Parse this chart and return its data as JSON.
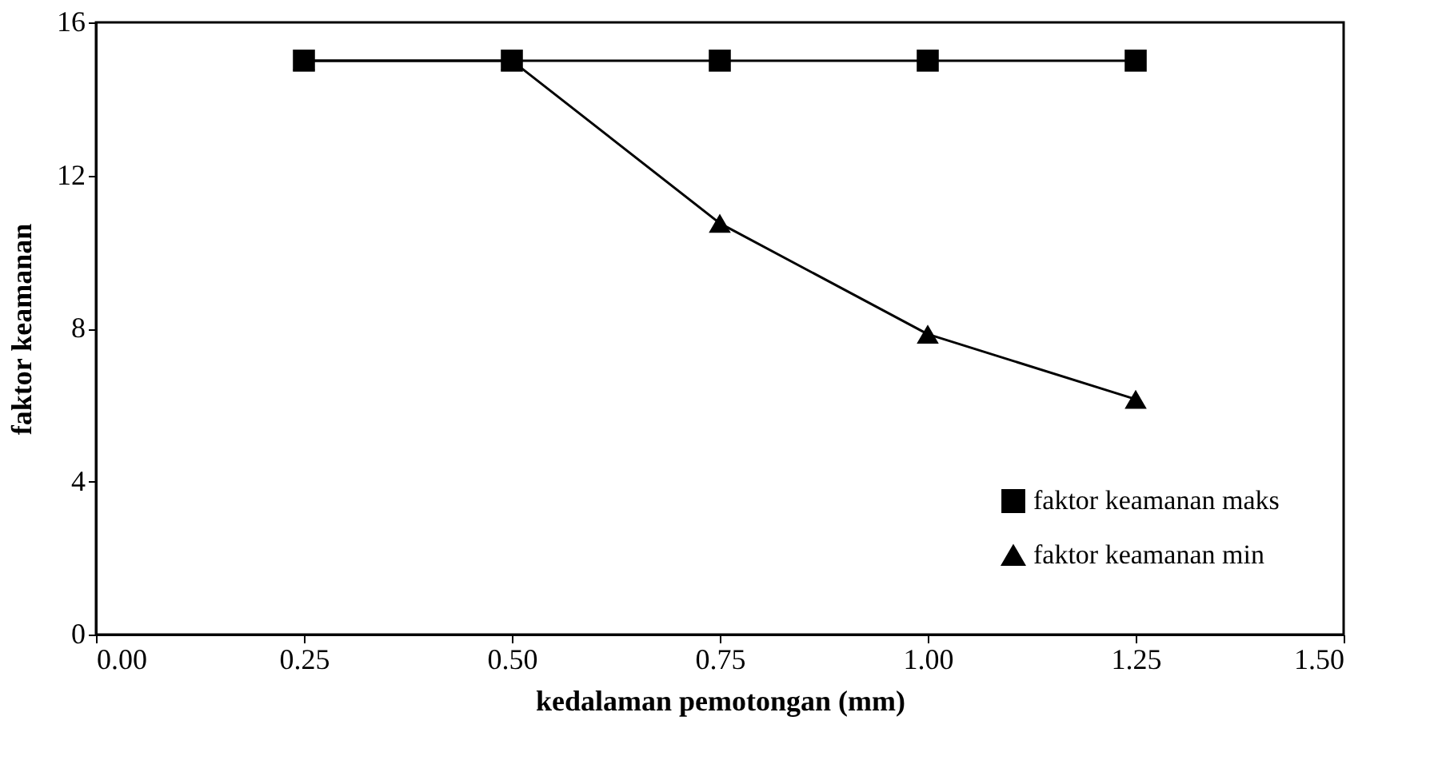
{
  "chart_data": {
    "type": "line",
    "xlabel": "kedalaman pemotongan (mm)",
    "ylabel": "faktor keamanan",
    "x": [
      0.25,
      0.5,
      0.75,
      1.0,
      1.25
    ],
    "series": [
      {
        "name": "faktor keamanan maks",
        "color": "#000000",
        "marker": "square",
        "values": [
          15,
          15,
          15,
          15,
          15
        ]
      },
      {
        "name": "faktor keamanan min",
        "color": "#000000",
        "marker": "triangle",
        "values": [
          15,
          15,
          10.75,
          7.85,
          6.15
        ]
      }
    ],
    "xlim": [
      0,
      1.5
    ],
    "xticks": [
      {
        "value": 0,
        "label": "0.00"
      },
      {
        "value": 0.25,
        "label": "0.25"
      },
      {
        "value": 0.5,
        "label": "0.50"
      },
      {
        "value": 0.75,
        "label": "0.75"
      },
      {
        "value": 1.0,
        "label": "1.00"
      },
      {
        "value": 1.25,
        "label": "1.25"
      },
      {
        "value": 1.5,
        "label": "1.50"
      }
    ],
    "ylim": [
      0,
      16
    ],
    "yticks": [
      0,
      4,
      8,
      12,
      16
    ],
    "grid": false,
    "legend": "bottom right",
    "line_style": "solid"
  }
}
